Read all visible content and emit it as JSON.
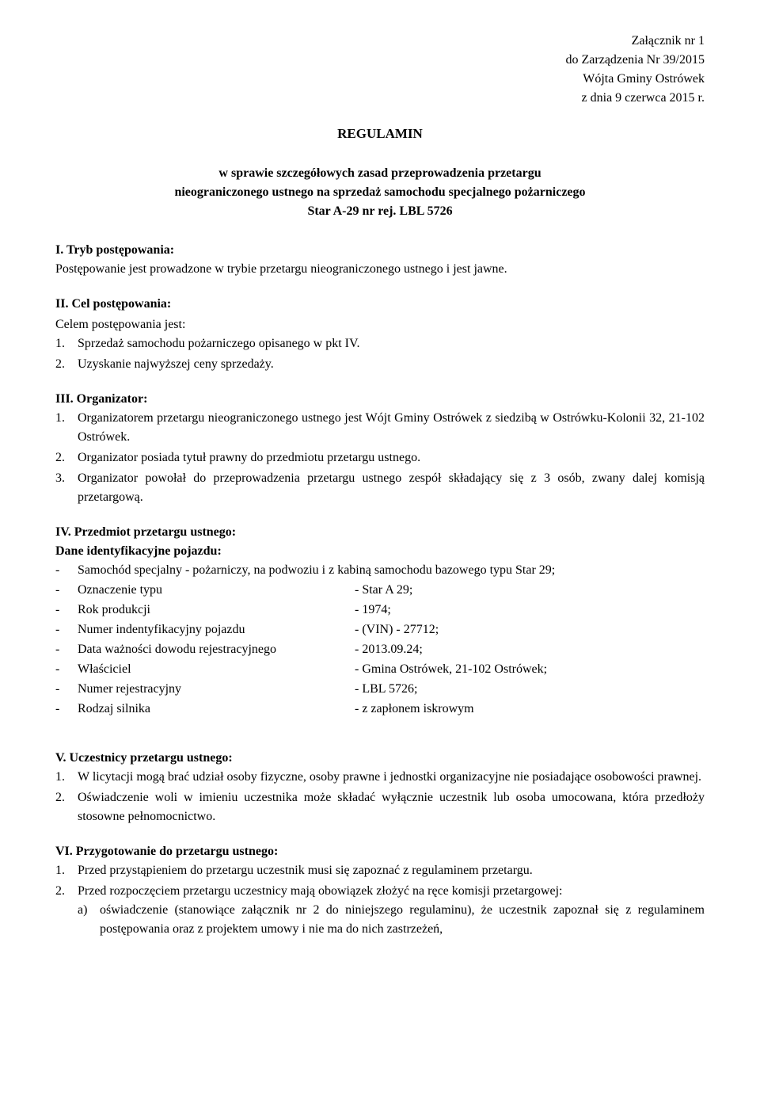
{
  "header": {
    "line1": "Załącznik nr 1",
    "line2": "do Zarządzenia Nr 39/2015",
    "line3": "Wójta Gminy Ostrówek",
    "line4": "z dnia 9 czerwca 2015 r."
  },
  "title": "REGULAMIN",
  "subtitle": {
    "line1": "w sprawie szczegółowych zasad przeprowadzenia przetargu",
    "line2": "nieograniczonego ustnego na sprzedaż samochodu specjalnego pożarniczego",
    "line3": "Star A-29 nr rej. LBL 5726"
  },
  "s1": {
    "heading": "I. Tryb postępowania:",
    "text": "Postępowanie jest prowadzone w trybie przetargu nieograniczonego ustnego i jest jawne."
  },
  "s2": {
    "heading": "II. Cel postępowania:",
    "intro": "Celem postępowania jest:",
    "items": [
      {
        "n": "1.",
        "t": "Sprzedaż samochodu pożarniczego opisanego w pkt IV."
      },
      {
        "n": "2.",
        "t": "Uzyskanie najwyższej ceny sprzedaży."
      }
    ]
  },
  "s3": {
    "heading": "III. Organizator:",
    "items": [
      {
        "n": "1.",
        "t": "Organizatorem przetargu nieograniczonego ustnego jest Wójt Gminy Ostrówek z siedzibą w Ostrówku-Kolonii 32, 21-102 Ostrówek."
      },
      {
        "n": "2.",
        "t": "Organizator posiada tytuł prawny do przedmiotu przetargu ustnego."
      },
      {
        "n": "3.",
        "t": "Organizator powołał do przeprowadzenia przetargu ustnego zespół składający się z 3 osób, zwany dalej komisją przetargową."
      }
    ]
  },
  "s4": {
    "heading": "IV. Przedmiot przetargu ustnego:",
    "sub": "Dane identyfikacyjne pojazdu:",
    "first": "Samochód specjalny - pożarniczy, na podwoziu i z kabiną samochodu bazowego typu Star 29;",
    "rows": [
      {
        "label": "Oznaczenie typu",
        "value": "- Star A 29;"
      },
      {
        "label": "Rok produkcji",
        "value": "- 1974;"
      },
      {
        "label": "Numer indentyfikacyjny pojazdu",
        "value": "- (VIN) - 27712;"
      },
      {
        "label": "Data ważności dowodu rejestracyjnego",
        "value": "- 2013.09.24;"
      },
      {
        "label": "Właściciel",
        "value": "- Gmina Ostrówek, 21-102 Ostrówek;"
      },
      {
        "label": "Numer rejestracyjny",
        "value": "- LBL 5726;"
      },
      {
        "label": "Rodzaj silnika",
        "value": "- z zapłonem iskrowym"
      }
    ]
  },
  "s5": {
    "heading": "V. Uczestnicy przetargu ustnego:",
    "items": [
      {
        "n": "1.",
        "t": "W licytacji mogą brać udział osoby fizyczne, osoby prawne i jednostki organizacyjne nie posiadające osobowości prawnej."
      },
      {
        "n": "2.",
        "t": "Oświadczenie woli w imieniu uczestnika może składać wyłącznie uczestnik lub osoba umocowana, która przedłoży stosowne pełnomocnictwo."
      }
    ]
  },
  "s6": {
    "heading": "VI. Przygotowanie do przetargu ustnego:",
    "items": [
      {
        "n": "1.",
        "t": "Przed przystąpieniem do przetargu uczestnik musi się zapoznać z regulaminem przetargu."
      },
      {
        "n": "2.",
        "t": "Przed rozpoczęciem przetargu uczestnicy mają obowiązek złożyć na ręce komisji przetargowej:"
      }
    ],
    "sub": [
      {
        "l": "a)",
        "t": "oświadczenie (stanowiące załącznik nr 2 do niniejszego regulaminu), że uczestnik zapoznał się z regulaminem postępowania oraz z projektem umowy i nie ma do nich zastrzeżeń,"
      }
    ]
  }
}
